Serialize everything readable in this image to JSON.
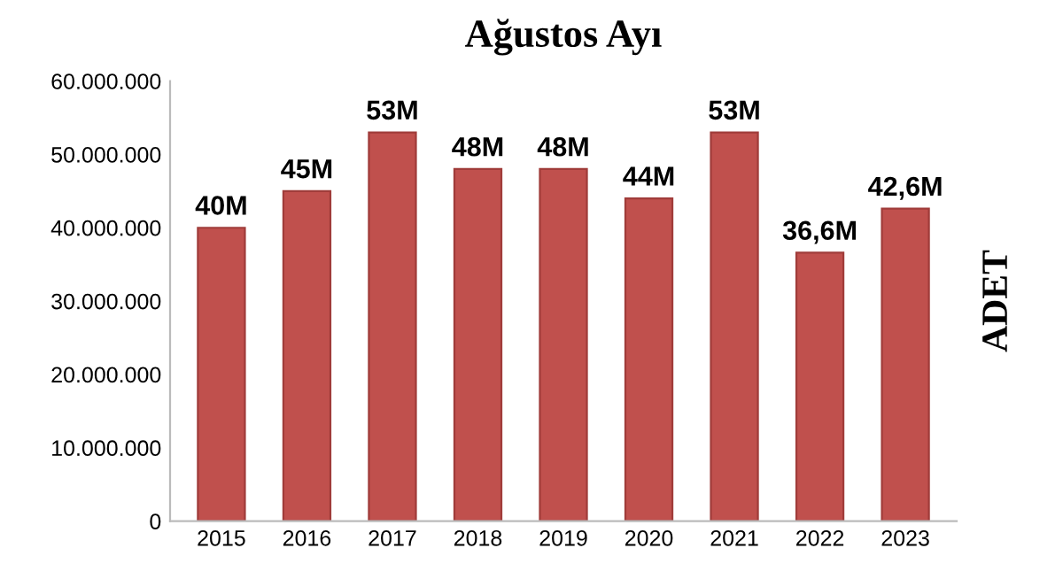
{
  "chart_data": {
    "type": "bar",
    "title": "Ağustos Ayı",
    "ylabel": "ADET",
    "categories": [
      "2015",
      "2016",
      "2017",
      "2018",
      "2019",
      "2020",
      "2021",
      "2022",
      "2023"
    ],
    "values": [
      40000000,
      45000000,
      53000000,
      48000000,
      48000000,
      44000000,
      53000000,
      36600000,
      42600000
    ],
    "value_labels": [
      "40M",
      "45M",
      "53M",
      "48M",
      "48M",
      "44M",
      "53M",
      "36,6M",
      "42,6M"
    ],
    "color": "#c0504d",
    "ylim": [
      0,
      60000000
    ],
    "yticks": [
      {
        "value": 0,
        "label": "0"
      },
      {
        "value": 10000000,
        "label": "10.000.000"
      },
      {
        "value": 20000000,
        "label": "20.000.000"
      },
      {
        "value": 30000000,
        "label": "30.000.000"
      },
      {
        "value": 40000000,
        "label": "40.000.000"
      },
      {
        "value": 50000000,
        "label": "50.000.000"
      },
      {
        "value": 60000000,
        "label": "60.000.000"
      }
    ],
    "grid": false
  }
}
